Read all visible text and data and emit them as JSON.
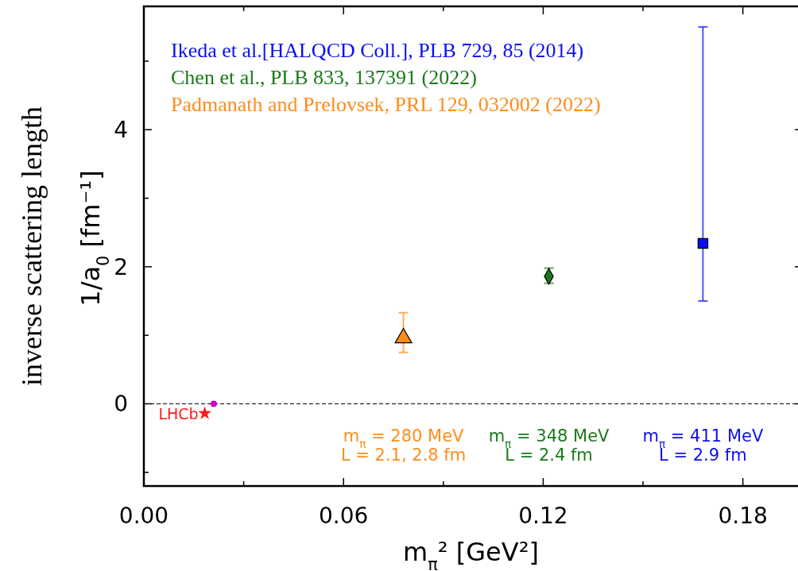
{
  "chart_data": {
    "type": "scatter",
    "xlabel": "m$_{π}$² [GeV²]",
    "ylabel": "1/a$_{0}$ [fm⁻¹]",
    "xlim": [
      0,
      0.198
    ],
    "ylim": [
      -1.2,
      5.8
    ],
    "xticks": [
      {
        "value": 0,
        "label": "0.00"
      },
      {
        "value": 0.03,
        "label": null
      },
      {
        "value": 0.06,
        "label": "0.06"
      },
      {
        "value": 0.09,
        "label": null
      },
      {
        "value": 0.12,
        "label": "0.12"
      },
      {
        "value": 0.15,
        "label": null
      },
      {
        "value": 0.18,
        "label": "0.18"
      }
    ],
    "yticks": [
      {
        "value": -1,
        "label": null
      },
      0,
      {
        "value": 1,
        "label": null
      },
      2,
      {
        "value": 3,
        "label": null
      },
      4,
      {
        "value": 5,
        "label": null
      }
    ],
    "grid": false,
    "legend": "top left",
    "series": [
      {
        "name": "Ikeda et al.[HALQCD Coll.], PLB 729, 85 (2014)",
        "color": "#0a10f0",
        "marker": "square",
        "x": [
          0.168
        ],
        "values": [
          2.34
        ],
        "errors": [
          [
            1.5,
            5.5
          ]
        ]
      },
      {
        "name": "Chen et al., PLB 833, 137391 (2022)",
        "color": "#1a7a1a",
        "marker": "diamond",
        "x": [
          0.1217
        ],
        "values": [
          1.86
        ],
        "errors": [
          [
            1.76,
            1.98
          ]
        ]
      },
      {
        "name": "Padmanath and  Prelovsek, PRL 129, 032002 (2022)",
        "color": "#ff8c1a",
        "marker": "triangle",
        "x": [
          0.078
        ],
        "values": [
          0.96
        ],
        "errors": [
          [
            0.75,
            1.33
          ]
        ]
      },
      {
        "name": "LHCb",
        "color": "#ff1a1a",
        "marker": "star",
        "x": [
          0.0183
        ],
        "values": [
          -0.14
        ]
      },
      {
        "color": "#cc00cc",
        "marker": "circle",
        "x": [
          0.021
        ],
        "values": [
          0
        ]
      }
    ],
    "ref_lines": [
      {
        "axis": "y",
        "value": 0,
        "color": "#000000",
        "line_style": "dashed"
      }
    ],
    "annotations": [
      "inverse scattering length",
      "m$_{π}$ = 280 MeV",
      "L = 2.1, 2.8 fm",
      "m$_{π}$ = 348 MeV",
      "L = 2.4 fm",
      "m$_{π}$ = 411 MeV",
      "L = 2.9 fm"
    ]
  }
}
